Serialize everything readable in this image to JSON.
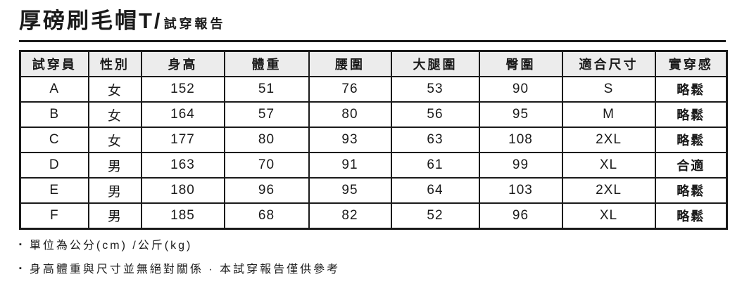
{
  "title": {
    "main": "厚磅刷毛帽T/",
    "sub": "試穿報告"
  },
  "table": {
    "column_keys": [
      "tester",
      "gender",
      "height",
      "weight",
      "waist",
      "thigh",
      "hip",
      "size",
      "fit"
    ],
    "headers": [
      "試穿員",
      "性別",
      "身高",
      "體重",
      "腰圍",
      "大腿圍",
      "臀圍",
      "適合尺寸",
      "實穿感"
    ],
    "rows": [
      [
        "A",
        "女",
        "152",
        "51",
        "76",
        "53",
        "90",
        "S",
        "略鬆"
      ],
      [
        "B",
        "女",
        "164",
        "57",
        "80",
        "56",
        "95",
        "M",
        "略鬆"
      ],
      [
        "C",
        "女",
        "177",
        "80",
        "93",
        "63",
        "108",
        "2XL",
        "略鬆"
      ],
      [
        "D",
        "男",
        "163",
        "70",
        "91",
        "61",
        "99",
        "XL",
        "合適"
      ],
      [
        "E",
        "男",
        "180",
        "96",
        "95",
        "64",
        "103",
        "2XL",
        "略鬆"
      ],
      [
        "F",
        "男",
        "185",
        "68",
        "82",
        "52",
        "96",
        "XL",
        "略鬆"
      ]
    ]
  },
  "notes": {
    "bullet": "▪",
    "items": [
      "單位為公分(cm) /公斤(kg)",
      "身高體重與尺寸並無絕對關係 · 本試穿報告僅供參考"
    ]
  },
  "colors": {
    "text": "#1a1a1a",
    "border": "#1a1a1a",
    "header_bg": "#ececec",
    "background": "#ffffff"
  }
}
